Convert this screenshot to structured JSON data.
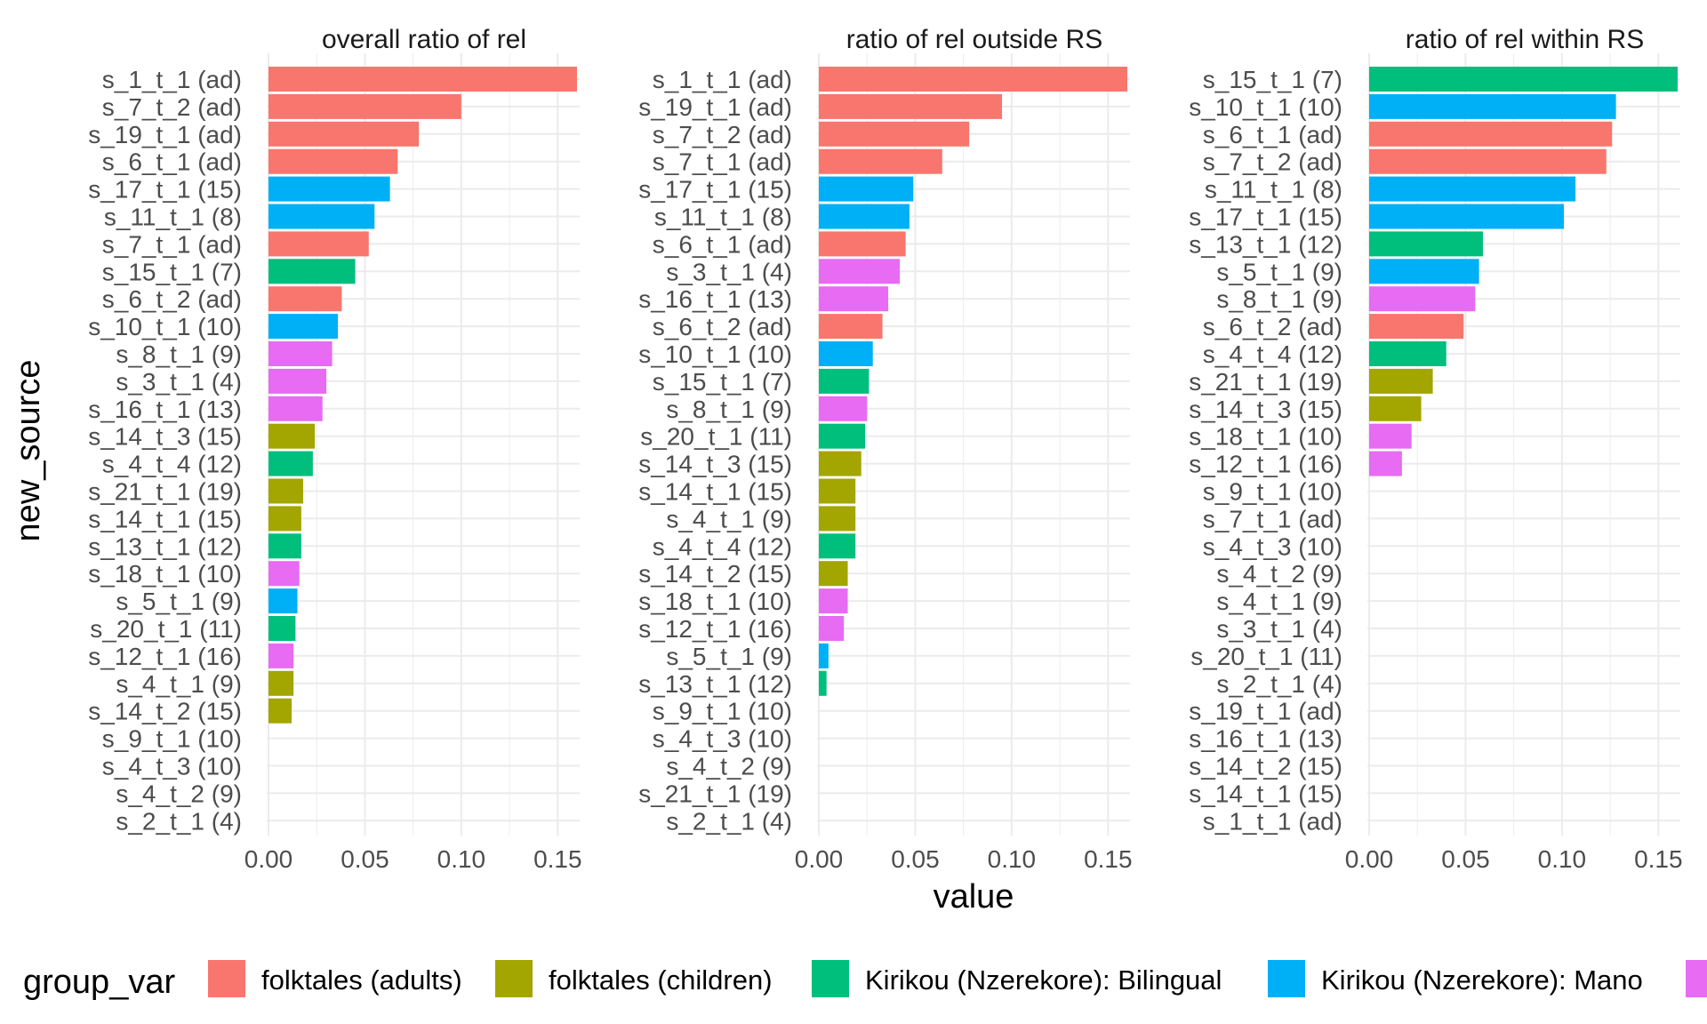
{
  "chart_data": {
    "type": "bar",
    "orientation": "horizontal",
    "xlabel": "value",
    "ylabel": "new_source",
    "xlim": [
      0,
      0.16
    ],
    "x_ticks": [
      0.0,
      0.05,
      0.1,
      0.15
    ],
    "x_tick_labels": [
      "0.00",
      "0.05",
      "0.10",
      "0.15"
    ],
    "grid": true,
    "legend": {
      "title": "group_var",
      "position": "bottom",
      "entries": [
        {
          "label": "folktales (adults)",
          "color": "#F8766D"
        },
        {
          "label": "folktales (children)",
          "color": "#A3A500"
        },
        {
          "label": "Kirikou (Nzerekore): Bilingual",
          "color": "#00BF7D"
        },
        {
          "label": "Kirikou (Nzerekore): Mano",
          "color": "#00B0F6"
        },
        {
          "label": "",
          "color": "#E76BF3"
        }
      ]
    },
    "panels": [
      {
        "title": "overall ratio of rel",
        "categories": [
          "s_1_t_1 (ad)",
          "s_7_t_2 (ad)",
          "s_19_t_1 (ad)",
          "s_6_t_1 (ad)",
          "s_17_t_1 (15)",
          "s_11_t_1 (8)",
          "s_7_t_1 (ad)",
          "s_15_t_1 (7)",
          "s_6_t_2 (ad)",
          "s_10_t_1 (10)",
          "s_8_t_1 (9)",
          "s_3_t_1 (4)",
          "s_16_t_1 (13)",
          "s_14_t_3 (15)",
          "s_4_t_4 (12)",
          "s_21_t_1 (19)",
          "s_14_t_1 (15)",
          "s_13_t_1 (12)",
          "s_18_t_1 (10)",
          "s_5_t_1 (9)",
          "s_20_t_1 (11)",
          "s_12_t_1 (16)",
          "s_4_t_1 (9)",
          "s_14_t_2 (15)",
          "s_9_t_1 (10)",
          "s_4_t_3 (10)",
          "s_4_t_2 (9)",
          "s_2_t_1 (4)"
        ],
        "values": [
          0.16,
          0.1,
          0.078,
          0.067,
          0.063,
          0.055,
          0.052,
          0.045,
          0.038,
          0.036,
          0.033,
          0.03,
          0.028,
          0.024,
          0.023,
          0.018,
          0.017,
          0.017,
          0.016,
          0.015,
          0.014,
          0.013,
          0.013,
          0.012,
          0,
          0,
          0,
          0
        ],
        "groups": [
          0,
          0,
          0,
          0,
          3,
          3,
          0,
          2,
          0,
          3,
          4,
          4,
          4,
          1,
          2,
          1,
          1,
          2,
          4,
          3,
          2,
          4,
          1,
          1,
          -1,
          -1,
          -1,
          -1
        ]
      },
      {
        "title": "ratio of rel outside RS",
        "categories": [
          "s_1_t_1 (ad)",
          "s_19_t_1 (ad)",
          "s_7_t_2 (ad)",
          "s_7_t_1 (ad)",
          "s_17_t_1 (15)",
          "s_11_t_1 (8)",
          "s_6_t_1 (ad)",
          "s_3_t_1 (4)",
          "s_16_t_1 (13)",
          "s_6_t_2 (ad)",
          "s_10_t_1 (10)",
          "s_15_t_1 (7)",
          "s_8_t_1 (9)",
          "s_20_t_1 (11)",
          "s_14_t_3 (15)",
          "s_14_t_1 (15)",
          "s_4_t_1 (9)",
          "s_4_t_4 (12)",
          "s_14_t_2 (15)",
          "s_18_t_1 (10)",
          "s_12_t_1 (16)",
          "s_5_t_1 (9)",
          "s_13_t_1 (12)",
          "s_9_t_1 (10)",
          "s_4_t_3 (10)",
          "s_4_t_2 (9)",
          "s_21_t_1 (19)",
          "s_2_t_1 (4)"
        ],
        "values": [
          0.16,
          0.095,
          0.078,
          0.064,
          0.049,
          0.047,
          0.045,
          0.042,
          0.036,
          0.033,
          0.028,
          0.026,
          0.025,
          0.024,
          0.022,
          0.019,
          0.019,
          0.019,
          0.015,
          0.015,
          0.013,
          0.005,
          0.004,
          0,
          0,
          0,
          0,
          0
        ],
        "groups": [
          0,
          0,
          0,
          0,
          3,
          3,
          0,
          4,
          4,
          0,
          3,
          2,
          4,
          2,
          1,
          1,
          1,
          2,
          1,
          4,
          4,
          3,
          2,
          -1,
          -1,
          -1,
          -1,
          -1
        ]
      },
      {
        "title": "ratio of rel within RS",
        "categories": [
          "s_15_t_1 (7)",
          "s_10_t_1 (10)",
          "s_6_t_1 (ad)",
          "s_7_t_2 (ad)",
          "s_11_t_1 (8)",
          "s_17_t_1 (15)",
          "s_13_t_1 (12)",
          "s_5_t_1 (9)",
          "s_8_t_1 (9)",
          "s_6_t_2 (ad)",
          "s_4_t_4 (12)",
          "s_21_t_1 (19)",
          "s_14_t_3 (15)",
          "s_18_t_1 (10)",
          "s_12_t_1 (16)",
          "s_9_t_1 (10)",
          "s_7_t_1 (ad)",
          "s_4_t_3 (10)",
          "s_4_t_2 (9)",
          "s_4_t_1 (9)",
          "s_3_t_1 (4)",
          "s_20_t_1 (11)",
          "s_2_t_1 (4)",
          "s_19_t_1 (ad)",
          "s_16_t_1 (13)",
          "s_14_t_2 (15)",
          "s_14_t_1 (15)",
          "s_1_t_1 (ad)"
        ],
        "values": [
          0.16,
          0.128,
          0.126,
          0.123,
          0.107,
          0.101,
          0.059,
          0.057,
          0.055,
          0.049,
          0.04,
          0.033,
          0.027,
          0.022,
          0.017,
          0,
          0,
          0,
          0,
          0,
          0,
          0,
          0,
          0,
          0,
          0,
          0,
          0
        ],
        "groups": [
          2,
          3,
          0,
          0,
          3,
          3,
          2,
          3,
          4,
          0,
          2,
          1,
          1,
          4,
          4,
          -1,
          -1,
          -1,
          -1,
          -1,
          -1,
          -1,
          -1,
          -1,
          -1,
          -1,
          -1,
          -1
        ]
      }
    ]
  }
}
